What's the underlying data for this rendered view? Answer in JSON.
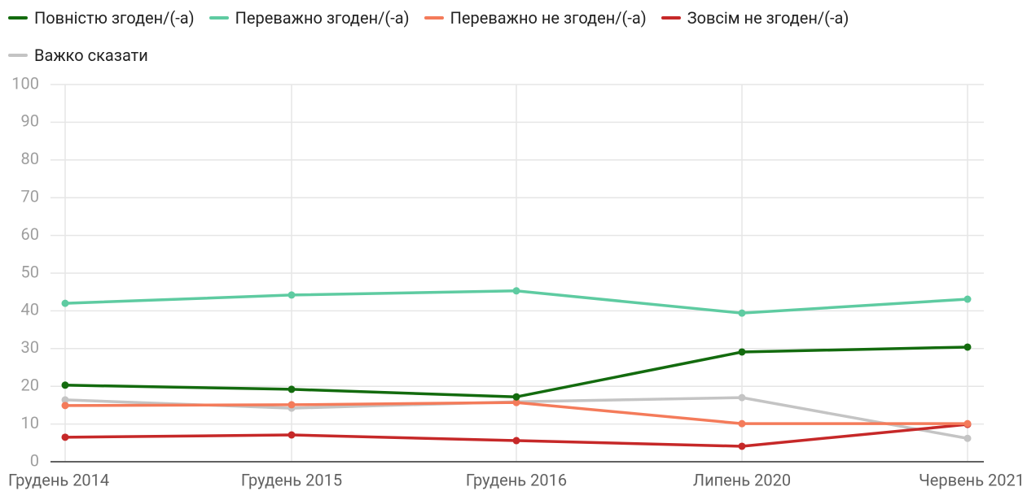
{
  "chart_data": {
    "type": "line",
    "categories": [
      "Грудень 2014",
      "Грудень 2015",
      "Грудень 2016",
      "Липень 2020",
      "Червень 2021"
    ],
    "series": [
      {
        "name": "Повністю згоден/(-а)",
        "color": "#136b0e",
        "values": [
          20.3,
          19.2,
          17.2,
          29.1,
          30.4
        ]
      },
      {
        "name": "Переважно згоден/(-а)",
        "color": "#5ecba1",
        "values": [
          42.0,
          44.2,
          45.3,
          39.4,
          43.1
        ]
      },
      {
        "name": "Переважно не згоден/(-а)",
        "color": "#f47b5a",
        "values": [
          14.9,
          15.1,
          15.7,
          10.1,
          10.1
        ]
      },
      {
        "name": "Зовсім не згоден/(-а)",
        "color": "#c62828",
        "values": [
          6.5,
          7.1,
          5.6,
          4.1,
          9.9
        ]
      },
      {
        "name": "Важко сказати",
        "color": "#c4c4c4",
        "values": [
          16.4,
          14.2,
          15.9,
          17.0,
          6.2
        ]
      }
    ],
    "ylim": [
      0,
      100
    ],
    "yticks": [
      0,
      10,
      20,
      30,
      40,
      50,
      60,
      70,
      80,
      90,
      100
    ],
    "grid": true,
    "legend": "top"
  }
}
